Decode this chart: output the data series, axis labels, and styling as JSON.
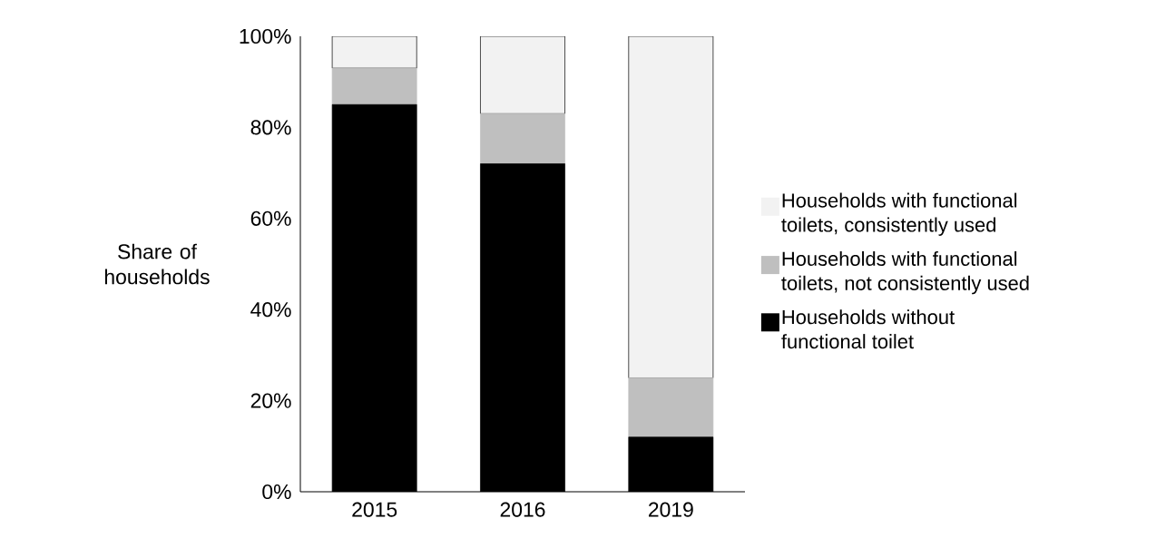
{
  "chart_data": {
    "type": "bar",
    "stacked": true,
    "ylabel": "Share of households",
    "categories": [
      "2015",
      "2016",
      "2019"
    ],
    "series": [
      {
        "name": "Households without functional toilet",
        "color": "#000000",
        "values": [
          85,
          72,
          12
        ]
      },
      {
        "name": "Households with functional toilets, not consistently used",
        "color": "#bfbfbf",
        "values": [
          8,
          11,
          13
        ]
      },
      {
        "name": "Households with functional toilets, consistently used",
        "color": "#f2f2f2",
        "values": [
          7,
          17,
          75
        ]
      }
    ],
    "ylim": [
      0,
      100
    ],
    "yticks": [
      {
        "value": 0,
        "label": "0%"
      },
      {
        "value": 20,
        "label": "20%"
      },
      {
        "value": 40,
        "label": "40%"
      },
      {
        "value": 60,
        "label": "60%"
      },
      {
        "value": 80,
        "label": "80%"
      },
      {
        "value": 100,
        "label": "100%"
      }
    ],
    "grid": false,
    "legend": "right"
  }
}
